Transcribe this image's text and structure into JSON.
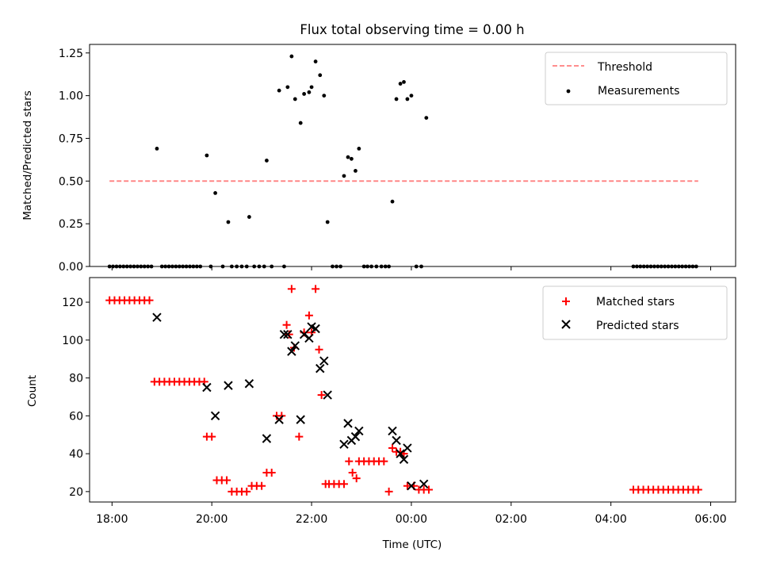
{
  "chart_data": [
    {
      "type": "scatter",
      "title": "Flux total observing time = 0.00 h",
      "xlabel": "",
      "ylabel": "Matched/Predicted stars",
      "xlim": [
        17.55,
        30.5
      ],
      "ylim": [
        0,
        1.3
      ],
      "xticks": [
        18,
        20,
        22,
        24,
        26,
        28,
        30
      ],
      "xticklabels": [
        "",
        "",
        "",
        "",
        "",
        "",
        ""
      ],
      "yticks": [
        0,
        0.25,
        0.5,
        0.75,
        1.0,
        1.25
      ],
      "yticklabels": [
        "0.00",
        "0.25",
        "0.50",
        "0.75",
        "1.00",
        "1.25"
      ],
      "legend": {
        "position": "top-right",
        "entries": [
          "Threshold",
          "Measurements"
        ]
      },
      "threshold": {
        "name": "Threshold",
        "value": 0.5,
        "x": [
          17.95,
          29.75
        ],
        "color": "#ff7f7f"
      },
      "series": [
        {
          "name": "Measurements",
          "color": "#000000",
          "x": [
            17.95,
            18.02,
            18.09,
            18.16,
            18.23,
            18.3,
            18.37,
            18.44,
            18.51,
            18.58,
            18.65,
            18.72,
            18.79,
            18.9,
            19.0,
            19.07,
            19.14,
            19.21,
            19.28,
            19.35,
            19.42,
            19.49,
            19.56,
            19.63,
            19.7,
            19.77,
            19.9,
            19.98,
            20.07,
            20.22,
            20.33,
            20.4,
            20.5,
            20.6,
            20.7,
            20.75,
            20.85,
            20.95,
            21.05,
            21.1,
            21.2,
            21.35,
            21.45,
            21.52,
            21.6,
            21.67,
            21.78,
            21.85,
            21.95,
            22.0,
            22.08,
            22.17,
            22.25,
            22.32,
            22.42,
            22.5,
            22.58,
            22.65,
            22.73,
            22.8,
            22.88,
            22.95,
            23.05,
            23.12,
            23.2,
            23.3,
            23.4,
            23.48,
            23.55,
            23.62,
            23.7,
            23.78,
            23.85,
            23.92,
            24.0,
            24.1,
            24.2,
            24.3,
            28.45,
            28.52,
            28.59,
            28.66,
            28.73,
            28.8,
            28.87,
            28.94,
            29.01,
            29.08,
            29.15,
            29.22,
            29.29,
            29.36,
            29.43,
            29.5,
            29.57,
            29.64,
            29.71
          ],
          "y": [
            0,
            0,
            0,
            0,
            0,
            0,
            0,
            0,
            0,
            0,
            0,
            0,
            0,
            0.69,
            0,
            0,
            0,
            0,
            0,
            0,
            0,
            0,
            0,
            0,
            0,
            0,
            0.65,
            0,
            0.43,
            0,
            0.26,
            0,
            0,
            0,
            0,
            0.29,
            0,
            0,
            0,
            0.62,
            0,
            1.03,
            0,
            1.05,
            1.23,
            0.98,
            0.84,
            1.01,
            1.02,
            1.05,
            1.2,
            1.12,
            1.0,
            0.26,
            0,
            0,
            0,
            0.53,
            0.64,
            0.63,
            0.56,
            0.69,
            0,
            0,
            0,
            0,
            0,
            0,
            0,
            0.38,
            0.98,
            1.07,
            1.08,
            0.98,
            1.0,
            0,
            0,
            0.87,
            0,
            0,
            0,
            0,
            0,
            0,
            0,
            0,
            0,
            0,
            0,
            0,
            0,
            0,
            0,
            0,
            0,
            0,
            0
          ]
        }
      ]
    },
    {
      "type": "scatter",
      "title": "",
      "xlabel": "Time (UTC)",
      "ylabel": "Count",
      "xlim": [
        17.55,
        30.5
      ],
      "ylim": [
        14.5,
        133
      ],
      "xticks": [
        18,
        20,
        22,
        24,
        26,
        28,
        30
      ],
      "xticklabels": [
        "18:00",
        "20:00",
        "22:00",
        "00:00",
        "02:00",
        "04:00",
        "06:00"
      ],
      "yticks": [
        20,
        40,
        60,
        80,
        100,
        120
      ],
      "yticklabels": [
        "20",
        "40",
        "60",
        "80",
        "100",
        "120"
      ],
      "legend": {
        "position": "top-right",
        "entries": [
          "Matched stars",
          "Predicted stars"
        ]
      },
      "series": [
        {
          "name": "Matched stars",
          "marker": "plus",
          "color": "#ff0000",
          "x": [
            17.95,
            18.05,
            18.15,
            18.25,
            18.35,
            18.45,
            18.55,
            18.65,
            18.75,
            18.85,
            18.95,
            19.05,
            19.15,
            19.25,
            19.35,
            19.45,
            19.55,
            19.65,
            19.75,
            19.85,
            19.9,
            20.0,
            20.1,
            20.2,
            20.3,
            20.4,
            20.5,
            20.6,
            20.7,
            20.8,
            20.9,
            21.0,
            21.1,
            21.2,
            21.3,
            21.4,
            21.5,
            21.55,
            21.6,
            21.65,
            21.75,
            21.85,
            21.95,
            22.0,
            22.08,
            22.15,
            22.2,
            22.28,
            22.35,
            22.45,
            22.55,
            22.65,
            22.75,
            22.82,
            22.9,
            22.95,
            23.05,
            23.15,
            23.25,
            23.35,
            23.45,
            23.55,
            23.62,
            23.7,
            23.78,
            23.85,
            23.92,
            24.05,
            24.15,
            24.25,
            24.35
          ],
          "y": [
            121,
            121,
            121,
            121,
            121,
            121,
            121,
            121,
            121,
            78,
            78,
            78,
            78,
            78,
            78,
            78,
            78,
            78,
            78,
            78,
            49,
            49,
            26,
            26,
            26,
            20,
            20,
            20,
            20,
            23,
            23,
            23,
            30,
            30,
            60,
            60,
            108,
            103,
            127,
            96,
            49,
            104,
            113,
            104,
            127,
            95,
            71,
            24,
            24,
            24,
            24,
            24,
            36,
            30,
            27,
            36,
            36,
            36,
            36,
            36,
            36,
            20,
            43,
            41,
            41,
            40,
            23,
            23,
            21,
            21,
            21
          ]
        },
        {
          "name": "Predicted stars",
          "marker": "x",
          "color": "#000000",
          "x": [
            18.9,
            19.9,
            20.07,
            20.33,
            20.75,
            21.1,
            21.35,
            21.45,
            21.52,
            21.6,
            21.67,
            21.78,
            21.85,
            21.95,
            22.0,
            22.08,
            22.17,
            22.25,
            22.32,
            22.65,
            22.73,
            22.8,
            22.88,
            22.95,
            23.62,
            23.7,
            23.78,
            23.85,
            23.92,
            24.0,
            24.25
          ],
          "y": [
            112,
            75,
            60,
            76,
            77,
            48,
            58,
            103,
            103,
            94,
            97,
            58,
            103,
            101,
            107,
            106,
            85,
            89,
            71,
            45,
            56,
            47,
            49,
            52,
            52,
            47,
            40,
            37,
            43,
            23,
            24
          ]
        }
      ],
      "extra_series": [
        {
          "name": "Matched stars",
          "x": [
            28.45,
            28.55,
            28.65,
            28.75,
            28.85,
            28.95,
            29.05,
            29.15,
            29.25,
            29.35,
            29.45,
            29.55,
            29.65,
            29.75
          ],
          "y": [
            21,
            21,
            21,
            21,
            21,
            21,
            21,
            21,
            21,
            21,
            21,
            21,
            21,
            21
          ]
        }
      ]
    }
  ]
}
